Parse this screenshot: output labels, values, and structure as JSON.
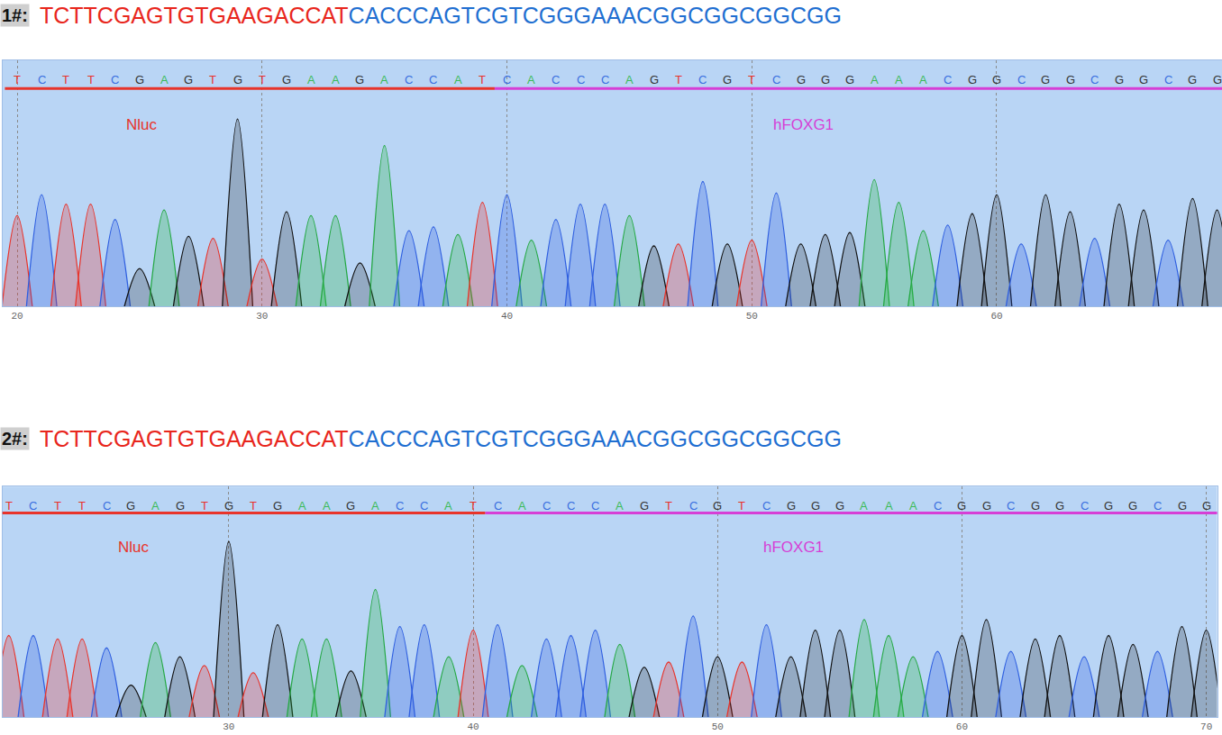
{
  "chart_data": [
    {
      "type": "chromatogram",
      "label": "1#:",
      "segments": [
        {
          "name": "Nluc",
          "sequence": "TCTTCGAGTGTGAAGACCAT",
          "color": "#e8342b"
        },
        {
          "name": "hFOXG1",
          "sequence": "CACCCAGTCGTCGGGAAACGGCGGCGGCGG",
          "color": "#d63fd6"
        }
      ],
      "x": [
        20,
        21,
        22,
        23,
        24,
        25,
        26,
        27,
        28,
        29,
        30,
        31,
        32,
        33,
        34,
        35,
        36,
        37,
        38,
        39,
        40,
        41,
        42,
        43,
        44,
        45,
        46,
        47,
        48,
        49,
        50,
        51,
        52,
        53,
        54,
        55,
        56,
        57,
        58,
        59,
        60,
        61,
        62,
        63,
        64,
        65,
        66,
        67,
        68,
        69
      ],
      "values": [
        48,
        59,
        54,
        54,
        46,
        20,
        51,
        37,
        36,
        99,
        25,
        50,
        48,
        48,
        23,
        85,
        40,
        42,
        38,
        55,
        59,
        35,
        46,
        54,
        54,
        48,
        32,
        33,
        66,
        33,
        35,
        60,
        33,
        38,
        39,
        67,
        55,
        40,
        43,
        49,
        59,
        33,
        59,
        50,
        36,
        54,
        51,
        35,
        57,
        51
      ],
      "xlim": [
        19.4,
        69.2
      ],
      "xticks": [
        20,
        30,
        40,
        50,
        60
      ],
      "ylim": [
        0,
        130
      ],
      "grid": true,
      "tick_labels": "x"
    },
    {
      "type": "chromatogram",
      "label": "2#:",
      "segments": [
        {
          "name": "Nluc",
          "sequence": "TCTTCGAGTGTGAAGACCAT",
          "color": "#e8342b"
        },
        {
          "name": "hFOXG1",
          "sequence": "CACCCAGTCGTCGGGAAACGGCGGCGGCGG",
          "color": "#d63fd6"
        }
      ],
      "x": [
        21,
        22,
        23,
        24,
        25,
        26,
        27,
        28,
        29,
        30,
        31,
        32,
        33,
        34,
        35,
        36,
        37,
        38,
        39,
        40,
        41,
        42,
        43,
        44,
        45,
        46,
        47,
        48,
        49,
        50,
        51,
        52,
        53,
        54,
        55,
        56,
        57,
        58,
        59,
        60,
        61,
        62,
        63,
        64,
        65,
        66,
        67,
        68,
        69,
        70
      ],
      "values": [
        46,
        46,
        44,
        44,
        39,
        18,
        42,
        34,
        29,
        99,
        25,
        52,
        44,
        44,
        26,
        72,
        51,
        52,
        34,
        49,
        52,
        29,
        44,
        46,
        49,
        41,
        28,
        31,
        57,
        34,
        31,
        52,
        34,
        49,
        49,
        55,
        46,
        34,
        37,
        46,
        55,
        37,
        44,
        46,
        34,
        46,
        41,
        37,
        51,
        49
      ],
      "xlim": [
        20.74,
        70.44
      ],
      "xticks": [
        30,
        40,
        50,
        60,
        70
      ],
      "ylim": [
        0,
        130
      ],
      "grid": true,
      "tick_labels": "x"
    }
  ]
}
